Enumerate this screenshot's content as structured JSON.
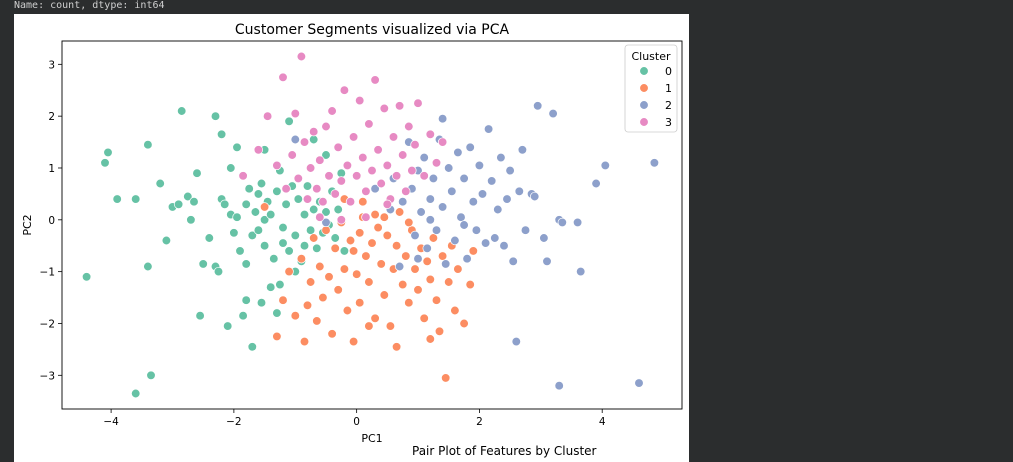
{
  "console": {
    "output_line": "Name: count, dtype: int64"
  },
  "colors": {
    "background": "#2b2d2e",
    "figure": "#ffffff",
    "cluster_0": "#66c2a5",
    "cluster_1": "#fc8d62",
    "cluster_2": "#8da0cb",
    "cluster_3": "#e78ac3"
  },
  "next_figure": {
    "title_partial": "Pair Plot of Features by Cluster"
  },
  "chart_data": {
    "type": "scatter",
    "title": "Customer Segments visualized via PCA",
    "xlabel": "PC1",
    "ylabel": "PC2",
    "xlim": [
      -4.8,
      5.3
    ],
    "ylim": [
      -3.65,
      3.45
    ],
    "xticks": [
      -4,
      -2,
      0,
      2,
      4
    ],
    "yticks": [
      -3,
      -2,
      -1,
      0,
      1,
      2,
      3
    ],
    "xtick_labels": [
      "−4",
      "−2",
      "0",
      "2",
      "4"
    ],
    "ytick_labels": [
      "−3",
      "−2",
      "−1",
      "0",
      "1",
      "2",
      "3"
    ],
    "grid": false,
    "legend": {
      "title": "Cluster",
      "position": "top-right",
      "entries": [
        "0",
        "1",
        "2",
        "3"
      ]
    },
    "series": [
      {
        "name": "0",
        "color": "#66c2a5",
        "points": [
          [
            -4.4,
            -1.1
          ],
          [
            -4.1,
            1.1
          ],
          [
            -4.05,
            1.3
          ],
          [
            -3.9,
            0.4
          ],
          [
            -3.6,
            0.4
          ],
          [
            -3.6,
            -3.35
          ],
          [
            -3.4,
            1.45
          ],
          [
            -3.4,
            -0.9
          ],
          [
            -3.35,
            -3.0
          ],
          [
            -3.2,
            0.7
          ],
          [
            -3.1,
            -0.4
          ],
          [
            -3.0,
            0.25
          ],
          [
            -2.9,
            0.3
          ],
          [
            -2.85,
            2.1
          ],
          [
            -2.75,
            0.45
          ],
          [
            -2.7,
            0.0
          ],
          [
            -2.65,
            0.35
          ],
          [
            -2.6,
            0.9
          ],
          [
            -2.55,
            -1.85
          ],
          [
            -2.5,
            -0.85
          ],
          [
            -2.4,
            -0.35
          ],
          [
            -2.3,
            2.0
          ],
          [
            -2.3,
            -0.9
          ],
          [
            -2.25,
            -1.0
          ],
          [
            -2.2,
            1.65
          ],
          [
            -2.2,
            0.4
          ],
          [
            -2.15,
            0.3
          ],
          [
            -2.1,
            -2.05
          ],
          [
            -2.05,
            1.0
          ],
          [
            -2.05,
            0.1
          ],
          [
            -2.0,
            -0.25
          ],
          [
            -1.95,
            1.4
          ],
          [
            -1.95,
            0.05
          ],
          [
            -1.9,
            -0.6
          ],
          [
            -1.85,
            -1.85
          ],
          [
            -1.8,
            -1.55
          ],
          [
            -1.8,
            -0.85
          ],
          [
            -1.8,
            0.3
          ],
          [
            -1.75,
            0.6
          ],
          [
            -1.7,
            -2.45
          ],
          [
            -1.7,
            -0.3
          ],
          [
            -1.65,
            0.15
          ],
          [
            -1.6,
            0.5
          ],
          [
            -1.6,
            -0.2
          ],
          [
            -1.55,
            0.7
          ],
          [
            -1.55,
            -1.6
          ],
          [
            -1.5,
            1.35
          ],
          [
            -1.5,
            0.0
          ],
          [
            -1.5,
            -0.5
          ],
          [
            -1.45,
            0.35
          ],
          [
            -1.4,
            -1.3
          ],
          [
            -1.4,
            0.1
          ],
          [
            -1.35,
            -0.75
          ],
          [
            -1.3,
            -1.8
          ],
          [
            -1.3,
            0.55
          ],
          [
            -1.25,
            -1.25
          ],
          [
            -1.25,
            0.95
          ],
          [
            -1.2,
            -0.15
          ],
          [
            -1.2,
            -0.45
          ],
          [
            -1.15,
            0.3
          ],
          [
            -1.1,
            -0.6
          ],
          [
            -1.1,
            1.9
          ],
          [
            -1.05,
            0.65
          ],
          [
            -1.0,
            -0.3
          ],
          [
            -1.0,
            -1.0
          ],
          [
            -0.95,
            0.4
          ],
          [
            -0.9,
            -0.8
          ],
          [
            -0.85,
            0.1
          ],
          [
            -0.85,
            -0.5
          ],
          [
            -0.8,
            0.65
          ],
          [
            -0.75,
            -0.2
          ],
          [
            -0.7,
            1.55
          ],
          [
            -0.7,
            0.2
          ],
          [
            -0.65,
            -0.55
          ],
          [
            -0.6,
            0.35
          ],
          [
            -0.55,
            -0.25
          ],
          [
            -0.5,
            1.25
          ],
          [
            -0.5,
            0.15
          ],
          [
            -0.45,
            -0.1
          ],
          [
            -0.4,
            0.55
          ],
          [
            -0.35,
            -0.35
          ],
          [
            -0.3,
            0.2
          ],
          [
            -0.25,
            0.9
          ],
          [
            -0.2,
            -0.6
          ]
        ]
      },
      {
        "name": "1",
        "color": "#fc8d62",
        "points": [
          [
            -1.5,
            0.25
          ],
          [
            -1.3,
            -2.25
          ],
          [
            -1.2,
            -1.55
          ],
          [
            -1.1,
            -1.0
          ],
          [
            -1.0,
            -1.85
          ],
          [
            -0.9,
            -0.75
          ],
          [
            -0.85,
            -2.35
          ],
          [
            -0.8,
            -1.65
          ],
          [
            -0.75,
            -1.2
          ],
          [
            -0.7,
            -0.35
          ],
          [
            -0.65,
            -1.95
          ],
          [
            -0.6,
            -0.9
          ],
          [
            -0.55,
            -1.5
          ],
          [
            -0.5,
            -0.2
          ],
          [
            -0.45,
            -1.1
          ],
          [
            -0.4,
            -2.2
          ],
          [
            -0.35,
            -0.55
          ],
          [
            -0.3,
            -1.35
          ],
          [
            -0.25,
            -0.05
          ],
          [
            -0.2,
            -0.95
          ],
          [
            -0.15,
            -1.75
          ],
          [
            -0.1,
            -0.4
          ],
          [
            -0.05,
            -2.35
          ],
          [
            0.0,
            -1.05
          ],
          [
            0.05,
            -0.25
          ],
          [
            0.05,
            -1.6
          ],
          [
            0.1,
            0.05
          ],
          [
            0.15,
            -0.7
          ],
          [
            0.2,
            -1.2
          ],
          [
            0.25,
            -0.45
          ],
          [
            0.3,
            -1.9
          ],
          [
            0.35,
            -0.15
          ],
          [
            0.4,
            -0.85
          ],
          [
            0.45,
            -1.45
          ],
          [
            0.5,
            -0.3
          ],
          [
            0.55,
            -2.05
          ],
          [
            0.6,
            -0.95
          ],
          [
            0.65,
            -0.5
          ],
          [
            0.65,
            -2.45
          ],
          [
            0.7,
            0.15
          ],
          [
            0.75,
            -1.25
          ],
          [
            0.8,
            -0.7
          ],
          [
            0.85,
            -1.6
          ],
          [
            0.9,
            -0.2
          ],
          [
            0.95,
            -0.95
          ],
          [
            1.0,
            -1.35
          ],
          [
            1.05,
            -0.55
          ],
          [
            1.1,
            -1.9
          ],
          [
            1.15,
            -0.8
          ],
          [
            1.2,
            -1.15
          ],
          [
            1.25,
            -0.35
          ],
          [
            1.3,
            -1.55
          ],
          [
            1.35,
            -2.15
          ],
          [
            1.4,
            -0.7
          ],
          [
            1.45,
            -3.05
          ],
          [
            1.5,
            -1.2
          ],
          [
            1.55,
            -0.5
          ],
          [
            1.6,
            -1.75
          ],
          [
            1.65,
            -0.95
          ],
          [
            1.75,
            -2.0
          ],
          [
            1.85,
            -1.25
          ],
          [
            1.9,
            -0.6
          ],
          [
            1.2,
            -2.3
          ],
          [
            0.2,
            -2.05
          ],
          [
            -0.2,
            0.4
          ],
          [
            0.1,
            0.35
          ],
          [
            0.3,
            0.1
          ],
          [
            -0.05,
            -0.6
          ],
          [
            0.45,
            0.05
          ],
          [
            0.85,
            -0.05
          ]
        ]
      },
      {
        "name": "2",
        "color": "#8da0cb",
        "points": [
          [
            -1.0,
            1.55
          ],
          [
            -0.5,
            -0.05
          ],
          [
            0.3,
            0.6
          ],
          [
            0.55,
            0.2
          ],
          [
            0.6,
            0.8
          ],
          [
            0.75,
            0.35
          ],
          [
            0.85,
            1.5
          ],
          [
            0.9,
            0.6
          ],
          [
            0.95,
            -0.3
          ],
          [
            1.0,
            0.95
          ],
          [
            1.05,
            0.15
          ],
          [
            1.1,
            1.2
          ],
          [
            1.15,
            -0.55
          ],
          [
            1.2,
            0.4
          ],
          [
            1.25,
            0.8
          ],
          [
            1.3,
            -0.2
          ],
          [
            1.35,
            1.55
          ],
          [
            1.4,
            0.25
          ],
          [
            1.45,
            -0.85
          ],
          [
            1.5,
            1.0
          ],
          [
            1.55,
            0.55
          ],
          [
            1.6,
            -0.4
          ],
          [
            1.65,
            1.3
          ],
          [
            1.7,
            0.05
          ],
          [
            1.75,
            0.8
          ],
          [
            1.8,
            -0.75
          ],
          [
            1.85,
            1.4
          ],
          [
            1.9,
            0.35
          ],
          [
            1.95,
            -0.2
          ],
          [
            2.0,
            1.05
          ],
          [
            2.05,
            0.5
          ],
          [
            2.1,
            -0.45
          ],
          [
            2.15,
            1.75
          ],
          [
            2.2,
            0.75
          ],
          [
            2.25,
            -0.35
          ],
          [
            2.3,
            0.2
          ],
          [
            2.35,
            1.2
          ],
          [
            2.4,
            -0.5
          ],
          [
            2.45,
            0.4
          ],
          [
            2.5,
            0.95
          ],
          [
            2.55,
            -0.8
          ],
          [
            2.6,
            -2.35
          ],
          [
            2.65,
            0.55
          ],
          [
            2.7,
            1.35
          ],
          [
            2.75,
            -0.2
          ],
          [
            2.85,
            0.5
          ],
          [
            2.9,
            0.45
          ],
          [
            2.95,
            2.2
          ],
          [
            3.05,
            -0.35
          ],
          [
            3.1,
            -0.8
          ],
          [
            3.2,
            2.05
          ],
          [
            3.3,
            0.0
          ],
          [
            3.35,
            -0.05
          ],
          [
            3.3,
            -3.2
          ],
          [
            3.6,
            -0.05
          ],
          [
            3.65,
            -1.0
          ],
          [
            3.9,
            0.7
          ],
          [
            4.05,
            1.05
          ],
          [
            4.6,
            -3.15
          ],
          [
            4.85,
            1.1
          ],
          [
            1.0,
            -0.75
          ],
          [
            1.4,
            1.95
          ],
          [
            0.7,
            -0.9
          ],
          [
            1.2,
            0.0
          ],
          [
            1.75,
            -0.1
          ]
        ]
      },
      {
        "name": "3",
        "color": "#e78ac3",
        "points": [
          [
            -1.85,
            0.85
          ],
          [
            -1.6,
            1.35
          ],
          [
            -1.45,
            2.0
          ],
          [
            -1.3,
            1.05
          ],
          [
            -1.2,
            2.75
          ],
          [
            -1.15,
            0.6
          ],
          [
            -1.05,
            1.25
          ],
          [
            -1.0,
            2.05
          ],
          [
            -0.95,
            0.8
          ],
          [
            -0.9,
            3.15
          ],
          [
            -0.85,
            1.5
          ],
          [
            -0.8,
            0.4
          ],
          [
            -0.75,
            1.0
          ],
          [
            -0.7,
            1.7
          ],
          [
            -0.65,
            0.6
          ],
          [
            -0.6,
            1.15
          ],
          [
            -0.55,
            0.35
          ],
          [
            -0.5,
            1.8
          ],
          [
            -0.45,
            0.85
          ],
          [
            -0.4,
            2.1
          ],
          [
            -0.35,
            0.5
          ],
          [
            -0.3,
            1.4
          ],
          [
            -0.25,
            0.75
          ],
          [
            -0.2,
            2.5
          ],
          [
            -0.15,
            1.05
          ],
          [
            -0.1,
            0.35
          ],
          [
            -0.05,
            1.6
          ],
          [
            0.0,
            0.85
          ],
          [
            0.05,
            2.3
          ],
          [
            0.1,
            1.2
          ],
          [
            0.15,
            0.55
          ],
          [
            0.2,
            1.85
          ],
          [
            0.25,
            0.95
          ],
          [
            0.3,
            2.7
          ],
          [
            0.35,
            1.35
          ],
          [
            0.4,
            0.7
          ],
          [
            0.45,
            2.15
          ],
          [
            0.5,
            1.05
          ],
          [
            0.55,
            0.4
          ],
          [
            0.6,
            1.6
          ],
          [
            0.65,
            0.85
          ],
          [
            0.7,
            2.2
          ],
          [
            0.75,
            1.25
          ],
          [
            0.8,
            0.55
          ],
          [
            0.85,
            1.8
          ],
          [
            0.9,
            0.95
          ],
          [
            0.95,
            1.45
          ],
          [
            1.0,
            2.25
          ],
          [
            1.1,
            0.85
          ],
          [
            1.2,
            1.65
          ],
          [
            1.3,
            1.1
          ],
          [
            1.4,
            1.5
          ],
          [
            -0.25,
            0.0
          ],
          [
            0.15,
            0.05
          ],
          [
            0.5,
            0.3
          ],
          [
            -0.6,
            0.05
          ]
        ]
      }
    ]
  }
}
